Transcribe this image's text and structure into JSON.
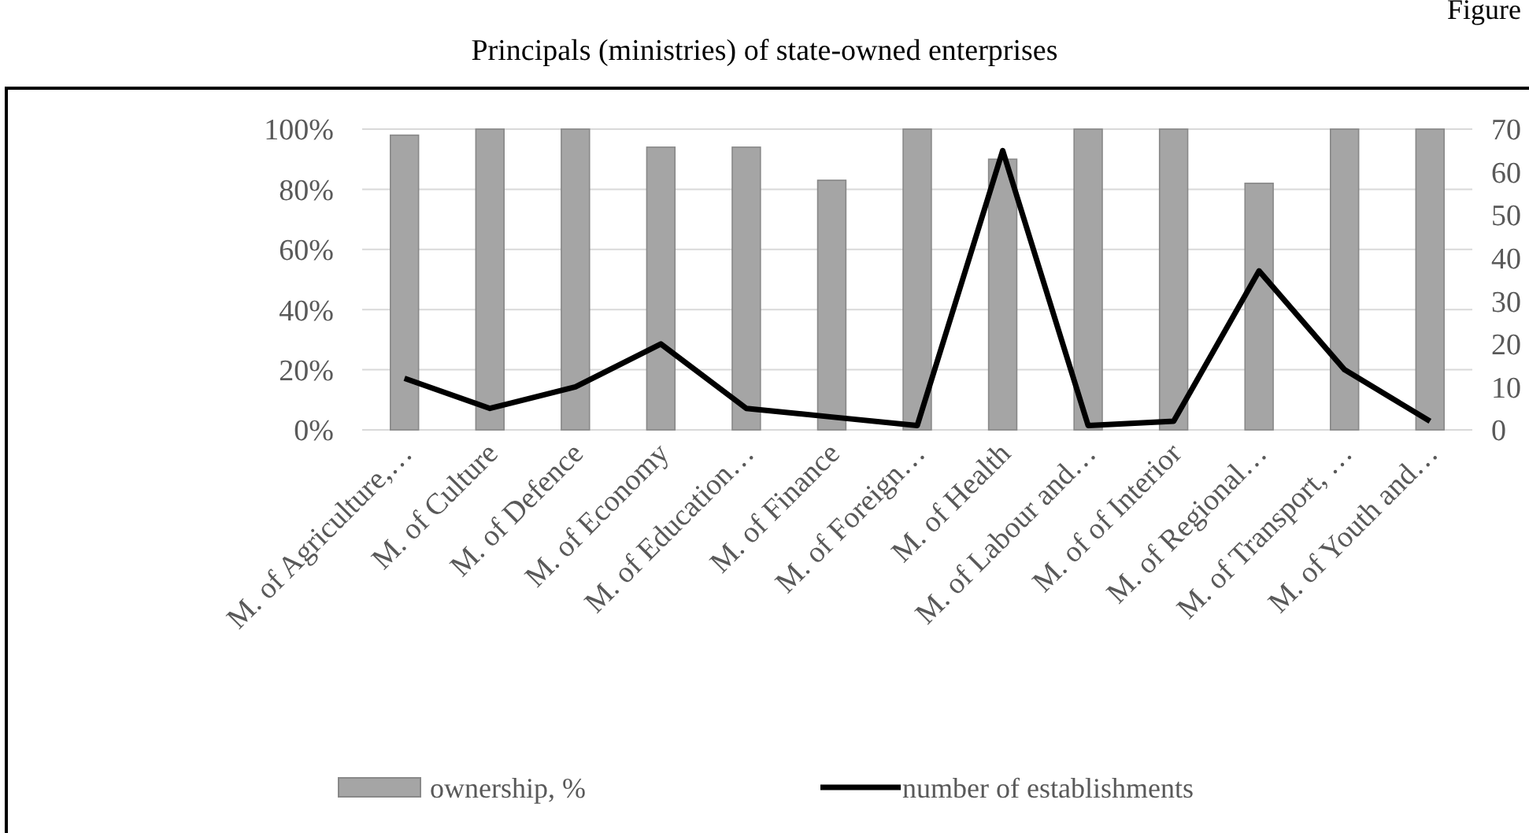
{
  "chart_data": {
    "type": "bar",
    "title": "Principals (ministries) of state-owned enterprises",
    "annotations": [
      "Figure"
    ],
    "categories": [
      "M. of Agriculture,…",
      "M. of Culture",
      "M. of Defence",
      "M. of Economy",
      "M. of Education…",
      "M. of Finance",
      "M. of Foreign…",
      "M. of Health",
      "M. of Labour and…",
      "M. of of Interior",
      "M. of Regional…",
      "M. of Transport, …",
      "M. of Youth and…"
    ],
    "series": [
      {
        "name": "ownership, %",
        "color": "#a5a5a5",
        "values": [
          98,
          100,
          100,
          94,
          94,
          83,
          100,
          90,
          100,
          100,
          82,
          100,
          100
        ]
      },
      {
        "name": "number of establishments",
        "type": "line",
        "axis": "y2",
        "color": "#000000",
        "values": [
          12,
          5,
          10,
          20,
          5,
          3,
          1,
          65,
          1,
          2,
          37,
          14,
          2
        ]
      }
    ],
    "ylim": [
      0,
      100
    ],
    "yticks": [
      {
        "value": 0,
        "label": "0%"
      },
      {
        "value": 20,
        "label": "20%"
      },
      {
        "value": 40,
        "label": "40%"
      },
      {
        "value": 60,
        "label": "60%"
      },
      {
        "value": 80,
        "label": "80%"
      },
      {
        "value": 100,
        "label": "100%"
      }
    ],
    "y2lim": [
      0,
      70
    ],
    "y2ticks": [
      0,
      10,
      20,
      30,
      40,
      50,
      60,
      70
    ],
    "grid": "y",
    "legend": "bottom",
    "marker": "none"
  }
}
